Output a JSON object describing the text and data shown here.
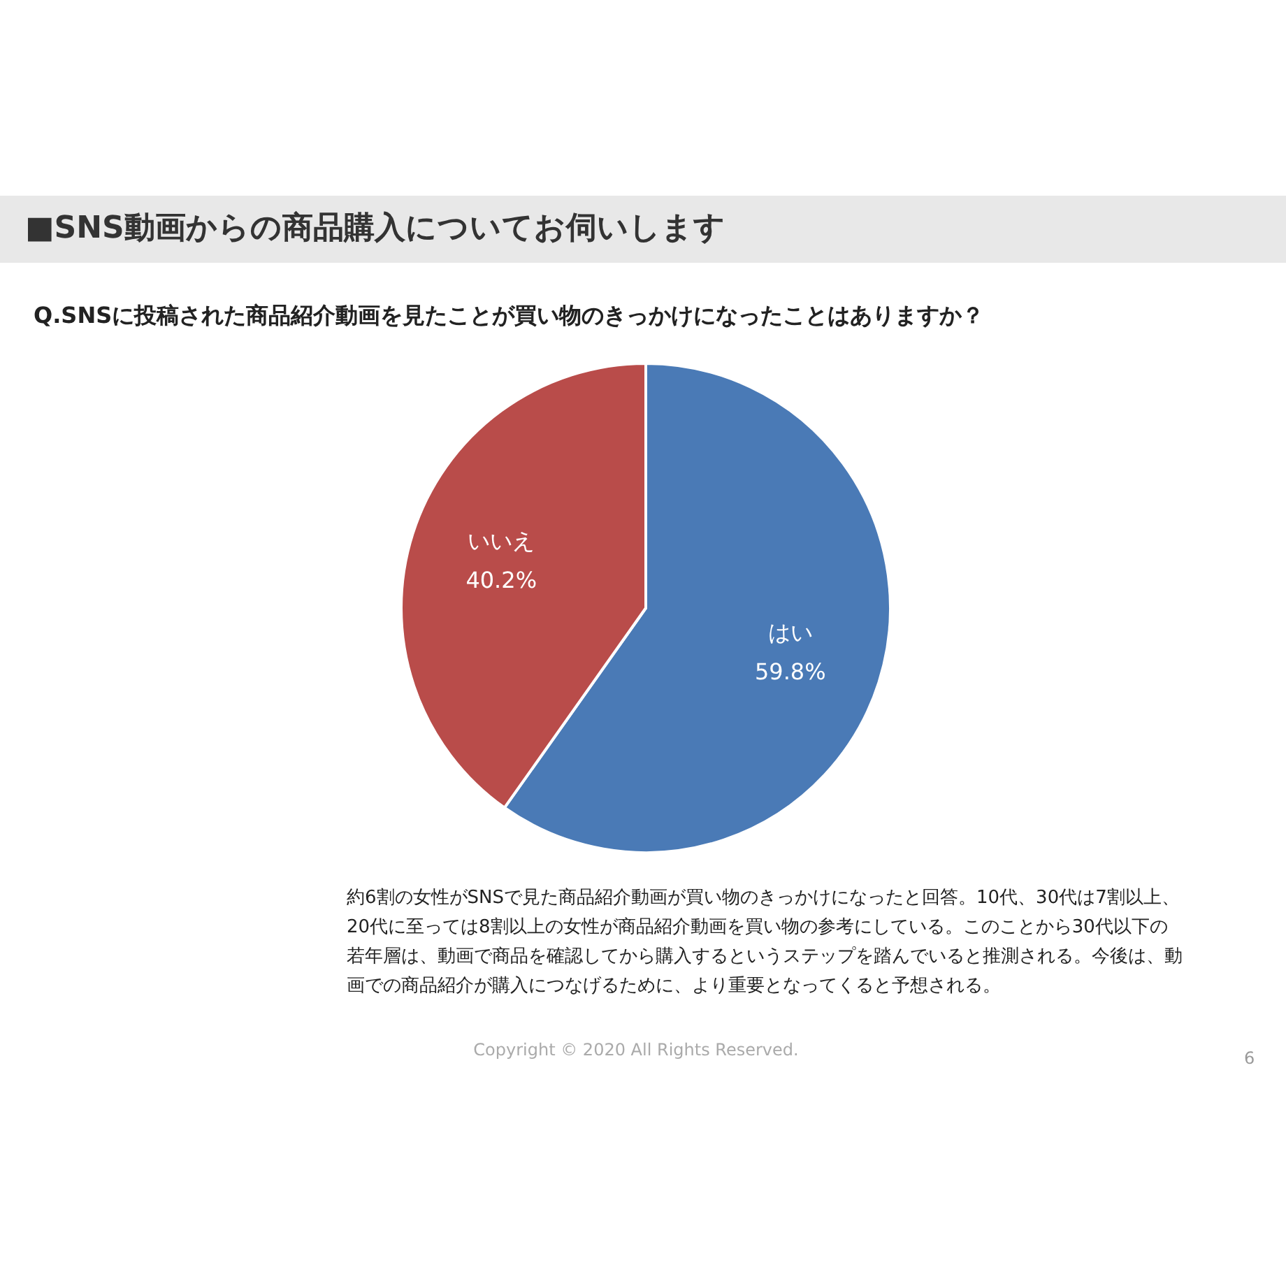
{
  "chart_data": {
    "type": "pie",
    "title": "■SNS動画からの商品購入についてお伺いします",
    "subtitle": "Q.SNSに投稿された商品紹介動画を見たことが買い物のきっかけになったことはありますか？",
    "categories": [
      "はい",
      "いいえ"
    ],
    "values": [
      59.8,
      40.2
    ],
    "value_labels": [
      "59.8%",
      "40.2%"
    ],
    "colors": [
      "#4a7ab6",
      "#b94c4a"
    ],
    "legend": false,
    "annotations": [
      "約6割の女性がSNSで見た商品紹介動画が買い物のきっかけになったと回答。10代、30代は7割以上、20代に至っては8割以上の女性が商品紹介動画を買い物の参考にしている。このことから30代以下の若年層は、動画で商品を確認してから購入するというステップを踏んでいると推測される。今後は、動画での商品紹介が購入につなげるために、より重要となってくると予想される。",
      "Copyright © 2020 All Rights Reserved.",
      "6"
    ]
  }
}
